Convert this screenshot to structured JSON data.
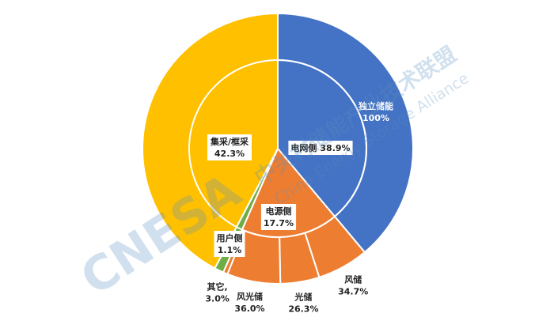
{
  "chart_data": {
    "type": "sunburst",
    "series": [
      {
        "name": "电网侧",
        "value": 38.9,
        "value_label": "38.9%",
        "color": "#4472c4",
        "children": [
          {
            "name": "独立储能",
            "value": 100,
            "value_label": "100%"
          }
        ]
      },
      {
        "name": "电源侧",
        "value": 17.7,
        "value_label": "17.7%",
        "color": "#ed7d31",
        "children": [
          {
            "name": "风储",
            "value": 34.7,
            "value_label": "34.7%"
          },
          {
            "name": "光储",
            "value": 26.3,
            "value_label": "26.3%"
          },
          {
            "name": "风光储",
            "value": 36.0,
            "value_label": "36.0%"
          },
          {
            "name": "其它,",
            "value": 3.0,
            "value_label": "3.0%"
          }
        ]
      },
      {
        "name": "用户侧",
        "value": 1.1,
        "value_label": "1.1%",
        "color": "#70ad47"
      },
      {
        "name": "集采/框采",
        "value": 42.3,
        "value_label": "42.3%",
        "color": "#ffc000"
      }
    ]
  },
  "watermark": {
    "logo": "CNESA",
    "name_cn": "中关村储能产业技术联盟",
    "name_en": "China Energy Storage Alliance"
  }
}
